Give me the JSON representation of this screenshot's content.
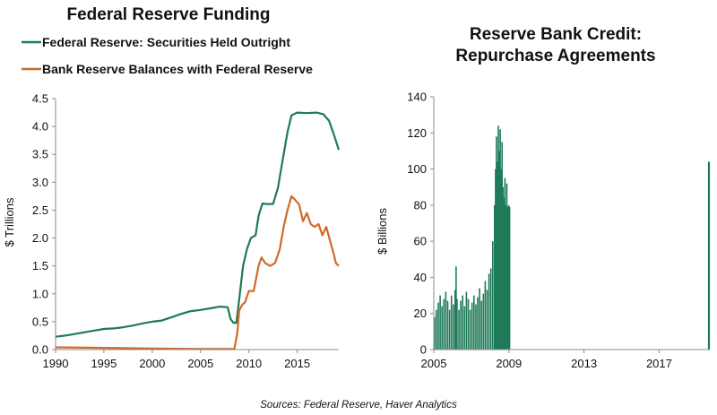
{
  "colors": {
    "green": "#1f7a58",
    "orange": "#cf6a2a",
    "axis": "#8a8a8a"
  },
  "source": "Sources: Federal Reserve, Haver Analytics",
  "chart_data": [
    {
      "type": "line",
      "title": "Federal Reserve Funding",
      "ylabel": "$ Trillions",
      "xlim": [
        1990,
        2019.3
      ],
      "ylim": [
        0,
        4.5
      ],
      "xticks": [
        1990,
        1995,
        2000,
        2005,
        2010,
        2015
      ],
      "yticks": [
        "0.0",
        "0.5",
        "1.0",
        "1.5",
        "2.0",
        "2.5",
        "3.0",
        "3.5",
        "4.0",
        "4.5"
      ],
      "legend_position": "top-left",
      "series": [
        {
          "name": "Federal Reserve: Securities Held Outright",
          "color": "#1f7a58",
          "points": [
            [
              1990,
              0.23
            ],
            [
              1991,
              0.25
            ],
            [
              1992,
              0.28
            ],
            [
              1993,
              0.31
            ],
            [
              1994,
              0.34
            ],
            [
              1995,
              0.37
            ],
            [
              1996,
              0.38
            ],
            [
              1997,
              0.4
            ],
            [
              1998,
              0.43
            ],
            [
              1999,
              0.47
            ],
            [
              2000,
              0.5
            ],
            [
              2001,
              0.52
            ],
            [
              2002,
              0.58
            ],
            [
              2003,
              0.64
            ],
            [
              2004,
              0.69
            ],
            [
              2005,
              0.71
            ],
            [
              2006,
              0.74
            ],
            [
              2007,
              0.77
            ],
            [
              2007.8,
              0.76
            ],
            [
              2008.1,
              0.55
            ],
            [
              2008.4,
              0.48
            ],
            [
              2008.7,
              0.48
            ],
            [
              2009.0,
              0.9
            ],
            [
              2009.4,
              1.5
            ],
            [
              2009.8,
              1.8
            ],
            [
              2010.2,
              2.0
            ],
            [
              2010.7,
              2.05
            ],
            [
              2011.0,
              2.4
            ],
            [
              2011.4,
              2.62
            ],
            [
              2011.8,
              2.61
            ],
            [
              2012.5,
              2.61
            ],
            [
              2013.0,
              2.9
            ],
            [
              2013.5,
              3.4
            ],
            [
              2014.0,
              3.9
            ],
            [
              2014.4,
              4.2
            ],
            [
              2015,
              4.25
            ],
            [
              2016,
              4.24
            ],
            [
              2017,
              4.25
            ],
            [
              2017.7,
              4.22
            ],
            [
              2018.3,
              4.1
            ],
            [
              2018.8,
              3.85
            ],
            [
              2019.3,
              3.58
            ]
          ]
        },
        {
          "name": "Bank Reserve Balances with Federal Reserve",
          "color": "#cf6a2a",
          "points": [
            [
              1990,
              0.04
            ],
            [
              1995,
              0.03
            ],
            [
              2000,
              0.02
            ],
            [
              2005,
              0.01
            ],
            [
              2008.5,
              0.01
            ],
            [
              2008.8,
              0.3
            ],
            [
              2009.0,
              0.7
            ],
            [
              2009.3,
              0.8
            ],
            [
              2009.6,
              0.85
            ],
            [
              2010.0,
              1.05
            ],
            [
              2010.5,
              1.05
            ],
            [
              2011.0,
              1.5
            ],
            [
              2011.3,
              1.65
            ],
            [
              2011.7,
              1.55
            ],
            [
              2012.2,
              1.5
            ],
            [
              2012.7,
              1.55
            ],
            [
              2013.2,
              1.8
            ],
            [
              2013.6,
              2.2
            ],
            [
              2014.0,
              2.5
            ],
            [
              2014.4,
              2.75
            ],
            [
              2014.7,
              2.7
            ],
            [
              2015.2,
              2.6
            ],
            [
              2015.6,
              2.3
            ],
            [
              2016.0,
              2.45
            ],
            [
              2016.4,
              2.25
            ],
            [
              2016.8,
              2.2
            ],
            [
              2017.2,
              2.25
            ],
            [
              2017.6,
              2.05
            ],
            [
              2018.0,
              2.2
            ],
            [
              2018.4,
              1.95
            ],
            [
              2018.8,
              1.7
            ],
            [
              2019.0,
              1.55
            ],
            [
              2019.3,
              1.5
            ]
          ]
        }
      ]
    },
    {
      "type": "bar",
      "title_lines": [
        "Reserve Bank Credit:",
        "Repurchase Agreements"
      ],
      "ylabel": "$ Billions",
      "xlim": [
        2005,
        2019.7
      ],
      "ylim": [
        0,
        140
      ],
      "xticks": [
        2005,
        2009,
        2013,
        2017
      ],
      "yticks": [
        0,
        20,
        40,
        60,
        80,
        100,
        120,
        140
      ],
      "color": "#1f7a58",
      "series": [
        {
          "points": [
            [
              2005.0,
              18
            ],
            [
              2005.1,
              22
            ],
            [
              2005.2,
              26
            ],
            [
              2005.3,
              30
            ],
            [
              2005.4,
              24
            ],
            [
              2005.5,
              28
            ],
            [
              2005.6,
              32
            ],
            [
              2005.7,
              27
            ],
            [
              2005.8,
              22
            ],
            [
              2005.9,
              30
            ],
            [
              2006.0,
              25
            ],
            [
              2006.1,
              33
            ],
            [
              2006.15,
              46
            ],
            [
              2006.2,
              28
            ],
            [
              2006.3,
              22
            ],
            [
              2006.4,
              27
            ],
            [
              2006.5,
              30
            ],
            [
              2006.6,
              24
            ],
            [
              2006.7,
              32
            ],
            [
              2006.8,
              28
            ],
            [
              2006.9,
              22
            ],
            [
              2007.0,
              26
            ],
            [
              2007.1,
              30
            ],
            [
              2007.2,
              25
            ],
            [
              2007.3,
              29
            ],
            [
              2007.4,
              34
            ],
            [
              2007.5,
              27
            ],
            [
              2007.6,
              31
            ],
            [
              2007.7,
              38
            ],
            [
              2007.8,
              33
            ],
            [
              2007.9,
              42
            ],
            [
              2008.0,
              45
            ],
            [
              2008.1,
              60
            ],
            [
              2008.2,
              80
            ],
            [
              2008.25,
              100
            ],
            [
              2008.3,
              118
            ],
            [
              2008.35,
              104
            ],
            [
              2008.4,
              124
            ],
            [
              2008.45,
              110
            ],
            [
              2008.5,
              122
            ],
            [
              2008.55,
              100
            ],
            [
              2008.6,
              115
            ],
            [
              2008.65,
              90
            ],
            [
              2008.7,
              84
            ],
            [
              2008.75,
              95
            ],
            [
              2008.8,
              80
            ],
            [
              2008.85,
              92
            ],
            [
              2008.9,
              79
            ],
            [
              2008.95,
              80
            ],
            [
              2009.0,
              79
            ],
            [
              2019.6,
              104
            ]
          ]
        }
      ]
    }
  ]
}
